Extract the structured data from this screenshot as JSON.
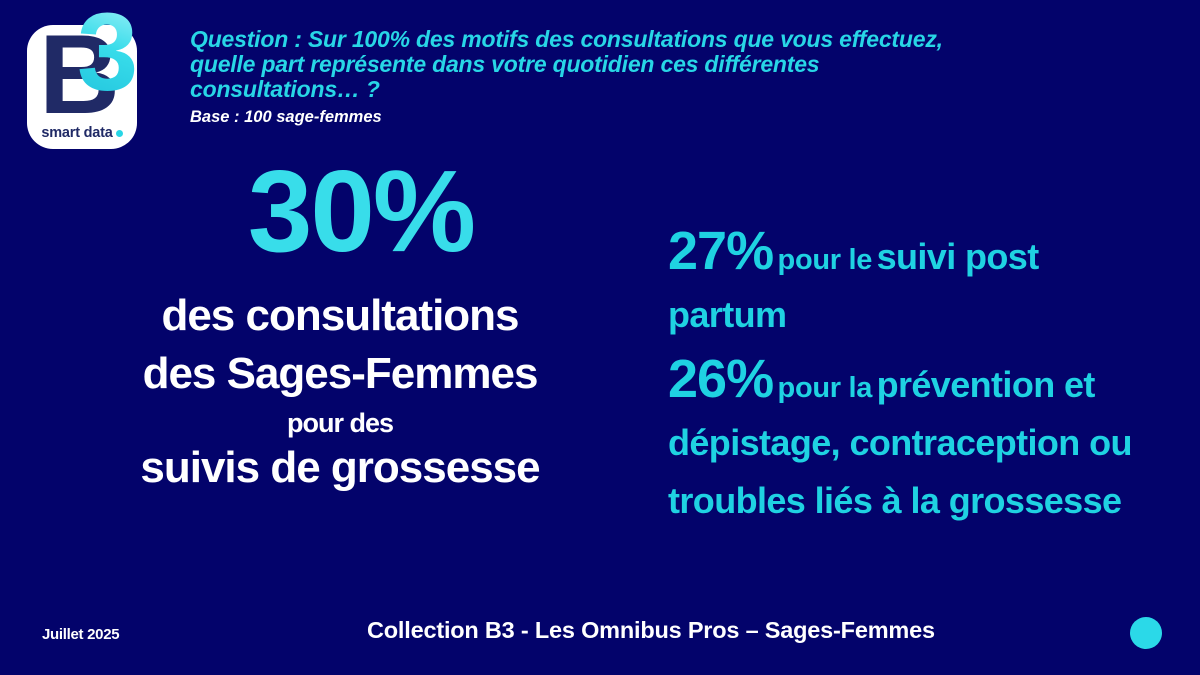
{
  "colors": {
    "background": "#03036B",
    "accent_cyan": "#1FD2E2",
    "accent_cyan_bright": "#38DDEA",
    "text_white": "#FFFFFF",
    "logo_navy": "#202A66"
  },
  "logo": {
    "letter": "B",
    "digit": "3",
    "brand": "smart data"
  },
  "header": {
    "question_lines": [
      "Question : Sur 100% des motifs des consultations que vous effectuez,",
      "quelle part représente dans votre quotidien ces différentes",
      "consultations… ?"
    ],
    "base_note": "Base : 100 sage-femmes"
  },
  "main_stat": {
    "value": "30%",
    "line1": "des consultations",
    "line2": "des Sages-Femmes",
    "line3": "pour des",
    "line4": "suivis de grossesse"
  },
  "side_stats": [
    {
      "value": "27%",
      "connector": "pour le",
      "label": "suivi post partum"
    },
    {
      "value": "26%",
      "connector": "pour la",
      "label": "prévention et dépistage, contraception ou troubles liés à la grossesse"
    }
  ],
  "footer": {
    "date": "Juillet 2025",
    "collection": "Collection  B3 - Les Omnibus Pros – Sages-Femmes"
  }
}
